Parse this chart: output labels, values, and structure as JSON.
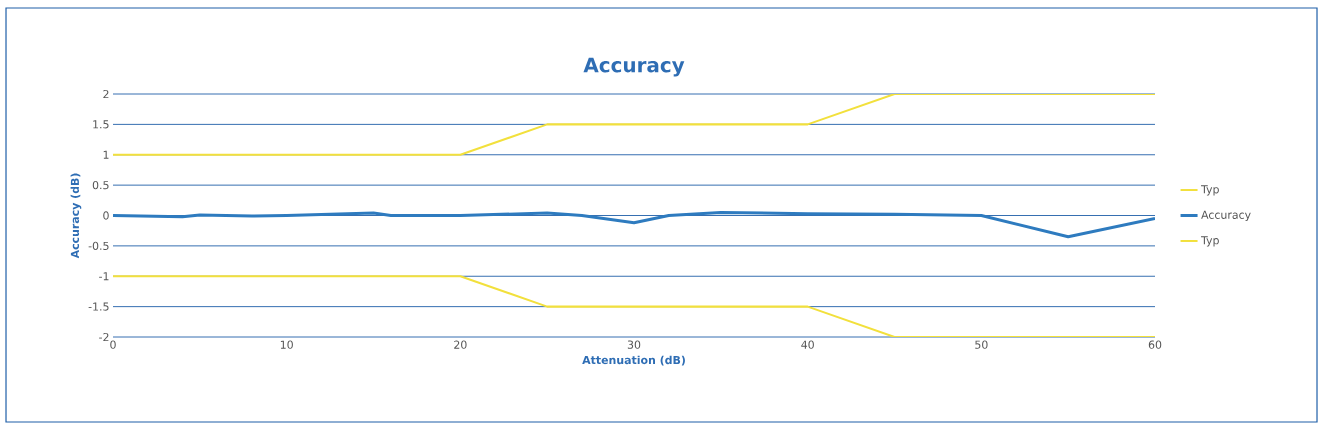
{
  "chart_data": {
    "type": "line",
    "title": "Accuracy",
    "xlabel": "Attenuation (dB)",
    "ylabel": "Accuracy (dB)",
    "xlim": [
      0,
      60
    ],
    "xticks": [
      0,
      10,
      20,
      30,
      40,
      50,
      60
    ],
    "ylim": [
      -2,
      2
    ],
    "yticks": [
      -2,
      -1.5,
      -1,
      -0.5,
      0,
      0.5,
      1,
      1.5,
      2
    ],
    "grid": "y",
    "legend": "right",
    "marker": "none",
    "line_style": "solid",
    "series": [
      {
        "name": "Typ",
        "color": "#f2e03c",
        "x": [
          0,
          20,
          25,
          40,
          45,
          60
        ],
        "values": [
          1,
          1,
          1.5,
          1.5,
          2,
          2
        ]
      },
      {
        "name": "Accuracy",
        "color": "#2e7bbf",
        "x": [
          0,
          4,
          5,
          8,
          10,
          15,
          16,
          20,
          25,
          27,
          30,
          32,
          35,
          40,
          45,
          50,
          55,
          60
        ],
        "values": [
          0,
          -0.02,
          0.01,
          -0.01,
          0,
          0.04,
          0,
          0,
          0.04,
          0,
          -0.12,
          0,
          0.05,
          0.03,
          0.02,
          0,
          -0.35,
          -0.05
        ]
      },
      {
        "name": "Typ",
        "color": "#f2e03c",
        "x": [
          0,
          20,
          25,
          40,
          45,
          60
        ],
        "values": [
          -1,
          -1,
          -1.5,
          -1.5,
          -2,
          -2
        ]
      }
    ]
  }
}
